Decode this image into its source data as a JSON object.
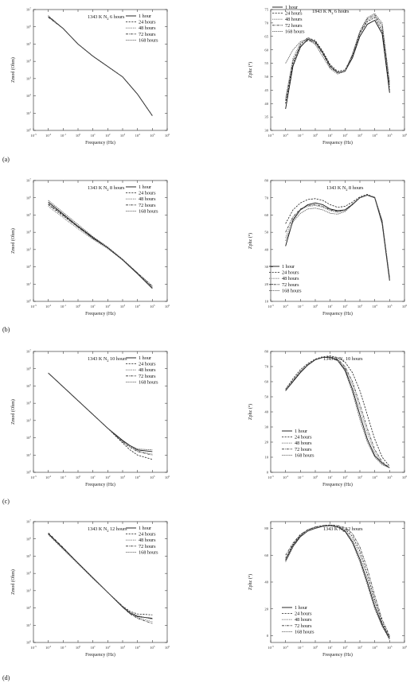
{
  "panel_labels": [
    "(a)",
    "(b)",
    "(c)",
    "(d)"
  ],
  "series_names": [
    "1 hour",
    "24 hours",
    "48 hours",
    "72 hours",
    "168 hours"
  ],
  "series_styles": [
    {
      "dash": "",
      "color": "#111111",
      "width": 0.9
    },
    {
      "dash": "2.2,1.4",
      "color": "#222222",
      "width": 0.8
    },
    {
      "dash": "0.8,1",
      "color": "#444444",
      "width": 0.8
    },
    {
      "dash": "3,1,0.8,1",
      "color": "#333333",
      "width": 0.8
    },
    {
      "dash": "1.5,0.8",
      "color": "#555555",
      "width": 0.8
    }
  ],
  "chart_data": [
    {
      "type": "line",
      "panel": "a",
      "quantity": "zmod",
      "title": "1343 K N2 6 hours",
      "title_main": "1343 K N",
      "title_sub": "2",
      "title_rest": " 6 hours",
      "xlabel": "Frequency (Hz)",
      "ylabel": "Zmod (Ohm)",
      "log_y": true,
      "xlim": [
        -3,
        6
      ],
      "ylim": [
        0,
        7
      ],
      "x": [
        -2,
        -1,
        0,
        1,
        2,
        3,
        4,
        5
      ],
      "series": [
        {
          "name": "1 hour",
          "values": [
            6.6,
            5.9,
            5.0,
            4.3,
            3.7,
            3.1,
            2.1,
            0.85
          ]
        },
        {
          "name": "24 hours",
          "values": [
            6.6,
            5.9,
            5.0,
            4.3,
            3.7,
            3.1,
            2.1,
            0.85
          ]
        },
        {
          "name": "48 hours",
          "values": [
            6.65,
            5.9,
            5.0,
            4.3,
            3.7,
            3.1,
            2.1,
            0.85
          ]
        },
        {
          "name": "72 hours",
          "values": [
            6.55,
            5.9,
            5.0,
            4.3,
            3.7,
            3.1,
            2.1,
            0.85
          ]
        },
        {
          "name": "168 hours",
          "values": [
            6.6,
            5.9,
            5.0,
            4.3,
            3.7,
            3.1,
            2.1,
            0.85
          ]
        }
      ]
    },
    {
      "type": "line",
      "panel": "a",
      "quantity": "zphz",
      "title": "1343 K N2 6 hours",
      "title_main": "1343 K N",
      "title_sub": "2",
      "title_rest": " 6 hours",
      "xlabel": "Frequency (Hz)",
      "ylabel": "Zphz (°)",
      "log_y": false,
      "xlim": [
        -3,
        6
      ],
      "ylim": [
        30,
        75
      ],
      "yticks": [
        30,
        35,
        40,
        45,
        50,
        55,
        60,
        65,
        70,
        75
      ],
      "x": [
        -2,
        -1.5,
        -1,
        -0.5,
        0,
        0.5,
        1,
        1.5,
        2,
        2.5,
        3,
        3.5,
        4,
        4.5,
        5
      ],
      "series": [
        {
          "name": "1 hour",
          "values": [
            38,
            54,
            61,
            64,
            63,
            59,
            54,
            51.5,
            52,
            57,
            65,
            69.5,
            71,
            66,
            44
          ]
        },
        {
          "name": "24 hours",
          "values": [
            40,
            55,
            62,
            64.5,
            63.5,
            59.5,
            54.5,
            52,
            52.5,
            58,
            66,
            70.5,
            72,
            67,
            45
          ]
        },
        {
          "name": "48 hours",
          "values": [
            42,
            57,
            62.5,
            64.5,
            63,
            59,
            54,
            51.5,
            52,
            57.5,
            66,
            71,
            72.5,
            68,
            46
          ]
        },
        {
          "name": "72 hours",
          "values": [
            41,
            56,
            61.5,
            63.5,
            62.5,
            58.5,
            53.5,
            51.5,
            52,
            58,
            66.5,
            71.5,
            73,
            69,
            47
          ]
        },
        {
          "name": "168 hours",
          "values": [
            55,
            60,
            63,
            64,
            62,
            57.5,
            53,
            51,
            52,
            58.5,
            67,
            72,
            73.5,
            70,
            48
          ]
        }
      ]
    },
    {
      "type": "line",
      "panel": "b",
      "quantity": "zmod",
      "title": "1343 K N2 8 hours",
      "title_main": "1343 K N",
      "title_sub": "2",
      "title_rest": " 8 hours",
      "xlabel": "Frequency (Hz)",
      "ylabel": "Zmod (Ohm)",
      "log_y": true,
      "xlim": [
        -3,
        6
      ],
      "ylim": [
        0,
        7
      ],
      "x": [
        -2,
        -1,
        0,
        1,
        2,
        3,
        4,
        5
      ],
      "series": [
        {
          "name": "1 hour",
          "values": [
            5.75,
            5.05,
            4.35,
            3.7,
            3.1,
            2.4,
            1.6,
            0.75
          ]
        },
        {
          "name": "24 hours",
          "values": [
            5.6,
            4.95,
            4.3,
            3.65,
            3.1,
            2.4,
            1.6,
            0.75
          ]
        },
        {
          "name": "48 hours",
          "values": [
            5.5,
            4.85,
            4.2,
            3.6,
            3.05,
            2.4,
            1.6,
            0.8
          ]
        },
        {
          "name": "72 hours",
          "values": [
            5.65,
            5.0,
            4.3,
            3.65,
            3.1,
            2.4,
            1.65,
            0.85
          ]
        },
        {
          "name": "168 hours",
          "values": [
            5.85,
            5.15,
            4.45,
            3.75,
            3.15,
            2.45,
            1.65,
            0.9
          ]
        }
      ]
    },
    {
      "type": "line",
      "panel": "b",
      "quantity": "zphz",
      "title": "1343 K N2 8 hours",
      "title_main": "1343 K N",
      "title_sub": "2",
      "title_rest": " 8 hours",
      "xlabel": "Frequency (Hz)",
      "ylabel": "Zphz (°)",
      "log_y": false,
      "xlim": [
        -3,
        6
      ],
      "ylim": [
        10,
        80
      ],
      "yticks": [
        10,
        20,
        30,
        40,
        50,
        60,
        70,
        80
      ],
      "x": [
        -2,
        -1.5,
        -1,
        -0.5,
        0,
        0.5,
        1,
        1.5,
        2,
        2.5,
        3,
        3.5,
        4,
        4.5,
        5
      ],
      "series": [
        {
          "name": "1 hour",
          "values": [
            42,
            57,
            63,
            66,
            67,
            66,
            63.5,
            62.5,
            63,
            66,
            70,
            71.5,
            70,
            55,
            22
          ]
        },
        {
          "name": "24 hours",
          "values": [
            55,
            63,
            67,
            69,
            69.5,
            68.5,
            66,
            64.5,
            65,
            67.5,
            70.5,
            72,
            70,
            56,
            23
          ]
        },
        {
          "name": "48 hours",
          "values": [
            47,
            58,
            63,
            65,
            65.5,
            64.5,
            62.5,
            61.5,
            62.5,
            66,
            70,
            71.5,
            70,
            55,
            22
          ]
        },
        {
          "name": "72 hours",
          "values": [
            50,
            59,
            63.5,
            65.5,
            66,
            65,
            63,
            62,
            63,
            66.5,
            70,
            71.5,
            70,
            56,
            23
          ]
        },
        {
          "name": "168 hours",
          "values": [
            45,
            56,
            61,
            63.5,
            64,
            63,
            61,
            60.5,
            62,
            66,
            70,
            71.5,
            70.5,
            57,
            24
          ]
        }
      ]
    },
    {
      "type": "line",
      "panel": "c",
      "quantity": "zmod",
      "title": "1343 K N2 10 hours",
      "title_main": "1343 K N",
      "title_sub": "2",
      "title_rest": " 10 hours",
      "xlabel": "Frequency (Hz)",
      "ylabel": "Zmod (Ohm)",
      "log_y": true,
      "xlim": [
        -3,
        6
      ],
      "ylim": [
        0,
        7
      ],
      "x": [
        -2,
        -1,
        0,
        1,
        2,
        3,
        3.5,
        4,
        5
      ],
      "series": [
        {
          "name": "1 hour",
          "values": [
            5.75,
            4.95,
            4.15,
            3.35,
            2.55,
            1.85,
            1.55,
            1.3,
            1.2
          ]
        },
        {
          "name": "24 hours",
          "values": [
            5.75,
            4.95,
            4.15,
            3.35,
            2.55,
            1.7,
            1.3,
            1.0,
            0.75
          ]
        },
        {
          "name": "48 hours",
          "values": [
            5.75,
            4.95,
            4.15,
            3.35,
            2.55,
            1.8,
            1.5,
            1.25,
            1.05
          ]
        },
        {
          "name": "72 hours",
          "values": [
            5.75,
            4.95,
            4.15,
            3.35,
            2.55,
            1.75,
            1.45,
            1.2,
            1.0
          ]
        },
        {
          "name": "168 hours",
          "values": [
            5.75,
            4.95,
            4.15,
            3.35,
            2.55,
            1.8,
            1.55,
            1.35,
            1.3
          ]
        }
      ]
    },
    {
      "type": "line",
      "panel": "c",
      "quantity": "zphz",
      "title": "1343 K N2 10 hours",
      "title_main": "1343 K N",
      "title_sub": "2",
      "title_rest": " 10 hours",
      "xlabel": "Frequency (Hz)",
      "ylabel": "Zphz (°)",
      "log_y": false,
      "xlim": [
        -3,
        6
      ],
      "ylim": [
        0,
        80
      ],
      "yticks": [
        0,
        10,
        20,
        30,
        40,
        50,
        60,
        70,
        80
      ],
      "x": [
        -2,
        -1.5,
        -1,
        -0.5,
        0,
        0.5,
        1,
        1.5,
        2,
        2.5,
        3,
        3.5,
        4,
        4.5,
        5
      ],
      "series": [
        {
          "name": "1 hour",
          "values": [
            54,
            60,
            66,
            71,
            74.5,
            76,
            76,
            74,
            68,
            55,
            38,
            22,
            11,
            6,
            3
          ]
        },
        {
          "name": "24 hours",
          "values": [
            55,
            62,
            68,
            72,
            75,
            76.5,
            77,
            76,
            73,
            66,
            54,
            38,
            22,
            10,
            4
          ]
        },
        {
          "name": "48 hours",
          "values": [
            54,
            60,
            66,
            71,
            74.5,
            76,
            76,
            74.5,
            69,
            58,
            42,
            26,
            13,
            6,
            3
          ]
        },
        {
          "name": "72 hours",
          "values": [
            54,
            60.5,
            66.5,
            71,
            74.5,
            76,
            76.5,
            75,
            70,
            60,
            45,
            29,
            15,
            7,
            3
          ]
        },
        {
          "name": "168 hours",
          "values": [
            55,
            61,
            67,
            71.5,
            74.5,
            76,
            76,
            74,
            67,
            53,
            35,
            20,
            10,
            5,
            3
          ]
        }
      ]
    },
    {
      "type": "line",
      "panel": "d",
      "quantity": "zmod",
      "title": "1343 K N2 12 hours",
      "title_main": "1343 K N",
      "title_sub": "2",
      "title_rest": " 12 hours",
      "xlabel": "Frequency (Hz)",
      "ylabel": "Zmod (Ohm)",
      "log_y": true,
      "xlim": [
        -3,
        6
      ],
      "ylim": [
        0,
        7
      ],
      "x": [
        -2,
        -1,
        0,
        1,
        2,
        3,
        3.5,
        4,
        5
      ],
      "series": [
        {
          "name": "1 hour",
          "values": [
            6.3,
            5.45,
            4.6,
            3.75,
            2.9,
            2.05,
            1.7,
            1.5,
            1.4
          ]
        },
        {
          "name": "24 hours",
          "values": [
            6.3,
            5.45,
            4.6,
            3.75,
            2.9,
            2.1,
            1.8,
            1.65,
            1.6
          ]
        },
        {
          "name": "48 hours",
          "values": [
            6.3,
            5.45,
            4.6,
            3.75,
            2.9,
            2.05,
            1.7,
            1.45,
            1.2
          ]
        },
        {
          "name": "72 hours",
          "values": [
            6.35,
            5.5,
            4.6,
            3.75,
            2.9,
            2.05,
            1.65,
            1.4,
            1.1
          ]
        },
        {
          "name": "168 hours",
          "values": [
            6.25,
            5.4,
            4.55,
            3.7,
            2.9,
            2.1,
            1.75,
            1.55,
            1.35
          ]
        }
      ]
    },
    {
      "type": "line",
      "panel": "d",
      "quantity": "zphz",
      "title": "1343 K N2 12 hours",
      "title_main": "1343 K N",
      "title_sub": "2",
      "title_rest": " 12 hours",
      "xlabel": "Frequency (Hz)",
      "ylabel": "Zphz (°)",
      "log_y": false,
      "xlim": [
        -3,
        6
      ],
      "ylim": [
        -5,
        85
      ],
      "yticks": [
        0,
        20,
        40,
        60,
        80
      ],
      "x": [
        -2,
        -1.5,
        -1,
        -0.5,
        0,
        0.5,
        1,
        1.5,
        2,
        2.5,
        3,
        3.5,
        4,
        4.5,
        5
      ],
      "series": [
        {
          "name": "1 hour",
          "values": [
            56,
            67,
            74,
            78,
            80,
            81.5,
            82,
            81,
            78,
            70,
            57,
            40,
            22,
            8,
            -2
          ]
        },
        {
          "name": "24 hours",
          "values": [
            58,
            68,
            75,
            79,
            81,
            82,
            82.5,
            81.5,
            79.5,
            74,
            63,
            46,
            27,
            10,
            -1
          ]
        },
        {
          "name": "48 hours",
          "values": [
            57,
            67.5,
            74.5,
            78.5,
            80.5,
            81.5,
            82,
            81,
            78.5,
            72,
            60,
            43,
            25,
            9,
            -2
          ]
        },
        {
          "name": "72 hours",
          "values": [
            60,
            69,
            75.5,
            79,
            81,
            82,
            82.5,
            82,
            80.5,
            76,
            66,
            50,
            30,
            12,
            0
          ]
        },
        {
          "name": "168 hours",
          "values": [
            55,
            66,
            73.5,
            78,
            80,
            81.5,
            82,
            81,
            77.5,
            69,
            55,
            38,
            20,
            7,
            -3
          ]
        }
      ]
    }
  ]
}
